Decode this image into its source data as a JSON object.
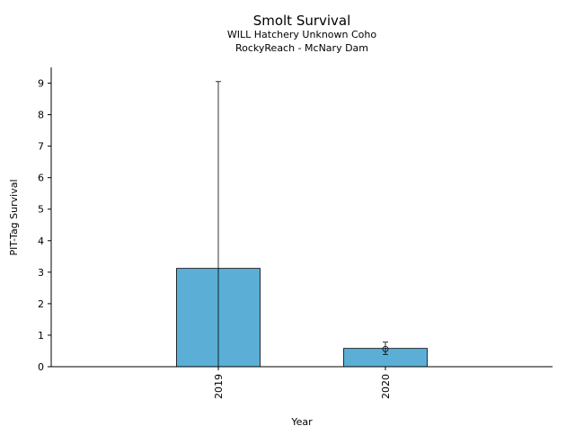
{
  "chart_data": {
    "type": "bar",
    "title": "Smolt Survival",
    "subtitle_lines": [
      "WILL Hatchery Unknown Coho",
      "RockyReach - McNary Dam"
    ],
    "xlabel": "Year",
    "ylabel": "PIT-Tag Survival",
    "categories": [
      "2019",
      "2020"
    ],
    "values": [
      3.12,
      0.58
    ],
    "error_low": [
      0,
      0.39
    ],
    "error_high": [
      9.05,
      0.78
    ],
    "point_markers": [
      null,
      0.56
    ],
    "ylim": [
      0,
      9.5
    ],
    "yticks": [
      0,
      1,
      2,
      3,
      4,
      5,
      6,
      7,
      8,
      9
    ],
    "grid": false,
    "bar_color": "#5bafd6",
    "edge_color": "#000000"
  }
}
